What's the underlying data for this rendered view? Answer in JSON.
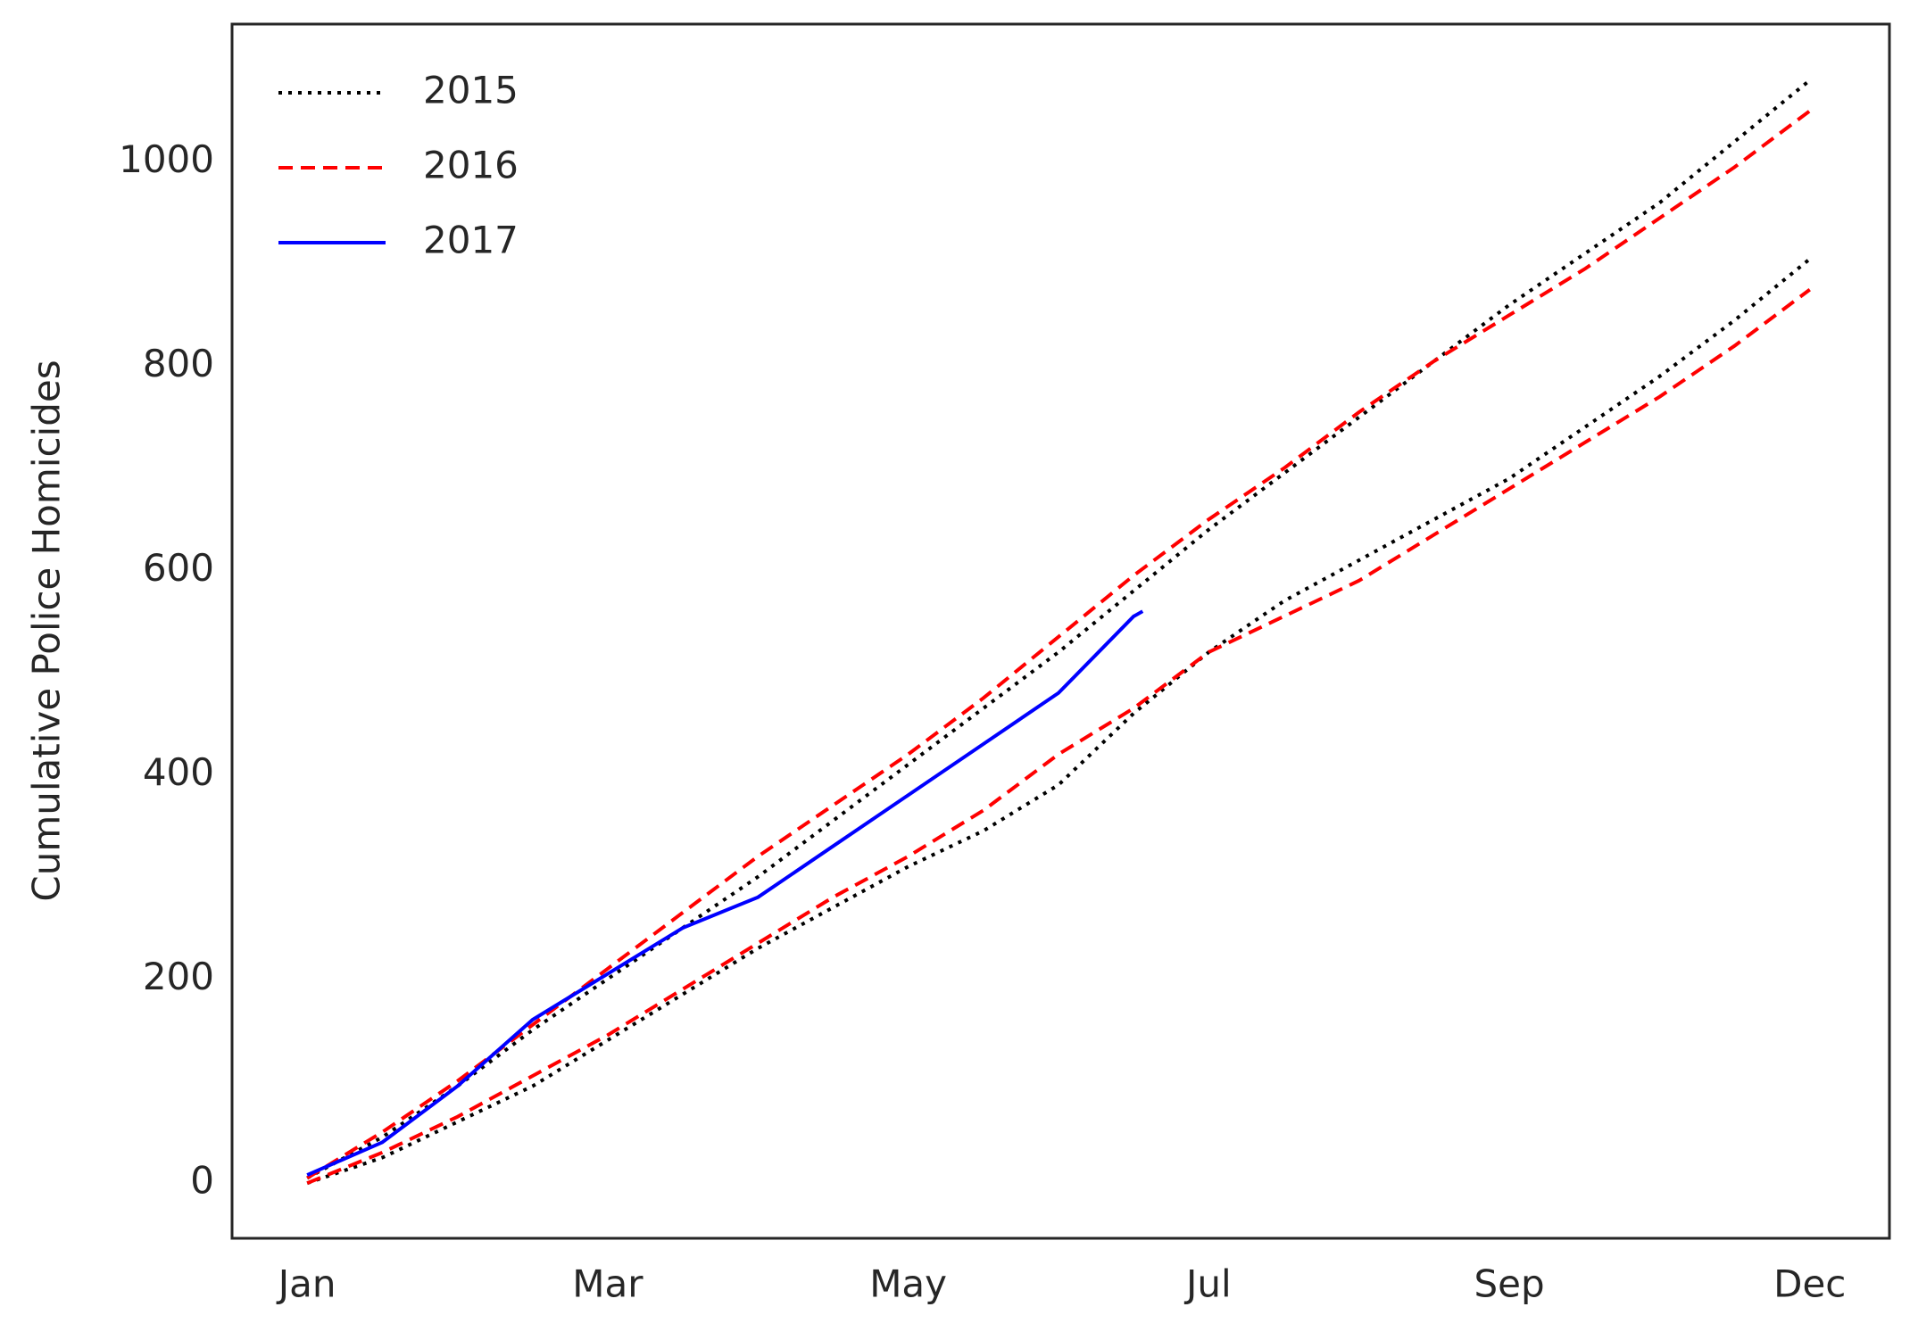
{
  "chart_data": {
    "type": "line",
    "ylabel": "Cumulative Police Homicides",
    "xlim": [
      -0.5,
      10.53
    ],
    "ylim": [
      -54,
      1135
    ],
    "xticks": [
      {
        "value": 0,
        "label": "Jan"
      },
      {
        "value": 2,
        "label": "Mar"
      },
      {
        "value": 4,
        "label": "May"
      },
      {
        "value": 6,
        "label": "Jul"
      },
      {
        "value": 8,
        "label": "Sep"
      },
      {
        "value": 10,
        "label": "Dec"
      }
    ],
    "yticks": [
      0,
      200,
      400,
      600,
      800,
      1000
    ],
    "legend": "upper-left",
    "series": [
      {
        "name": "2015",
        "color": "#000000",
        "dash": "dotted",
        "x": [
          0,
          0.5,
          1,
          1.5,
          2,
          2.5,
          3,
          3.5,
          4,
          4.5,
          5,
          5.5,
          6,
          6.5,
          7,
          7.5,
          8,
          8.5,
          9,
          9.5,
          10
        ],
        "lines": [
          [
            5,
            45,
            95,
            150,
            200,
            250,
            300,
            355,
            410,
            465,
            520,
            580,
            640,
            695,
            750,
            805,
            860,
            910,
            960,
            1020,
            1080
          ],
          [
            0,
            25,
            60,
            95,
            140,
            185,
            230,
            270,
            310,
            345,
            390,
            460,
            520,
            570,
            610,
            650,
            690,
            740,
            790,
            845,
            905
          ]
        ]
      },
      {
        "name": "2016",
        "color": "#ff0000",
        "dash": "dashed",
        "x": [
          0,
          0.5,
          1,
          1.5,
          2,
          2.5,
          3,
          3.5,
          4,
          4.5,
          5,
          5.5,
          6,
          6.5,
          7,
          7.5,
          8,
          8.5,
          9,
          9.5,
          10
        ],
        "lines": [
          [
            5,
            50,
            100,
            155,
            210,
            265,
            320,
            370,
            420,
            475,
            535,
            595,
            650,
            700,
            755,
            805,
            850,
            895,
            945,
            995,
            1050
          ],
          [
            0,
            30,
            65,
            105,
            145,
            190,
            235,
            280,
            320,
            365,
            420,
            465,
            520,
            555,
            590,
            635,
            680,
            725,
            770,
            820,
            875
          ]
        ]
      },
      {
        "name": "2017",
        "color": "#0000ff",
        "dash": "solid",
        "x": [
          0,
          0.5,
          1,
          1.5,
          2,
          2.5,
          3,
          3.5,
          4,
          4.5,
          5,
          5.5,
          5.56
        ],
        "lines": [
          [
            8,
            40,
            95,
            160,
            205,
            250,
            280,
            330,
            380,
            430,
            480,
            555,
            560
          ]
        ]
      }
    ]
  }
}
